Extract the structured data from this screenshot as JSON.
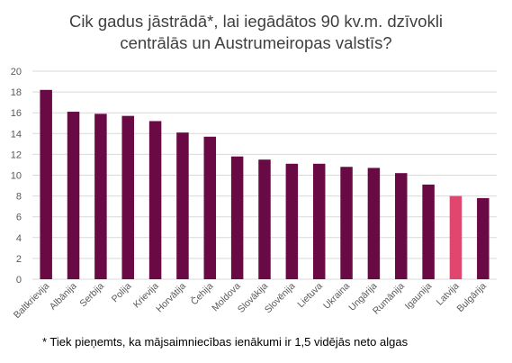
{
  "chart_data": {
    "type": "bar",
    "title_lines": [
      "Cik gadus jāstrādā*, lai iegādātos 90 kv.m. dzīvokli",
      "centrālās un Austrumeiropas valstīs?"
    ],
    "categories": [
      "Baltkrievija",
      "Albānija",
      "Serbija",
      "Polija",
      "Krievija",
      "Horvātija",
      "Čehija",
      "Moldova",
      "Slovākija",
      "Slovēnija",
      "Lietuva",
      "Ukraina",
      "Ungārija",
      "Rumānija",
      "Igaunija",
      "Latvija",
      "Bulgārija"
    ],
    "values": [
      18.2,
      16.1,
      15.9,
      15.7,
      15.2,
      14.1,
      13.7,
      11.8,
      11.5,
      11.1,
      11.1,
      10.8,
      10.7,
      10.2,
      9.1,
      8.0,
      7.8
    ],
    "highlight_category": "Latvija",
    "ylim": [
      0,
      20
    ],
    "yticks": [
      0,
      2,
      4,
      6,
      8,
      10,
      12,
      14,
      16,
      18,
      20
    ],
    "grid": true,
    "xlabel": "",
    "ylabel": "",
    "colors": {
      "bar": "#6a0a45",
      "highlight": "#e0476f",
      "grid": "#d9d9d9",
      "tick_text": "#595959"
    }
  },
  "footnote": "* Tiek pieņemts, ka mājsaimniecības ienākumi ir 1,5 vidējās neto algas"
}
